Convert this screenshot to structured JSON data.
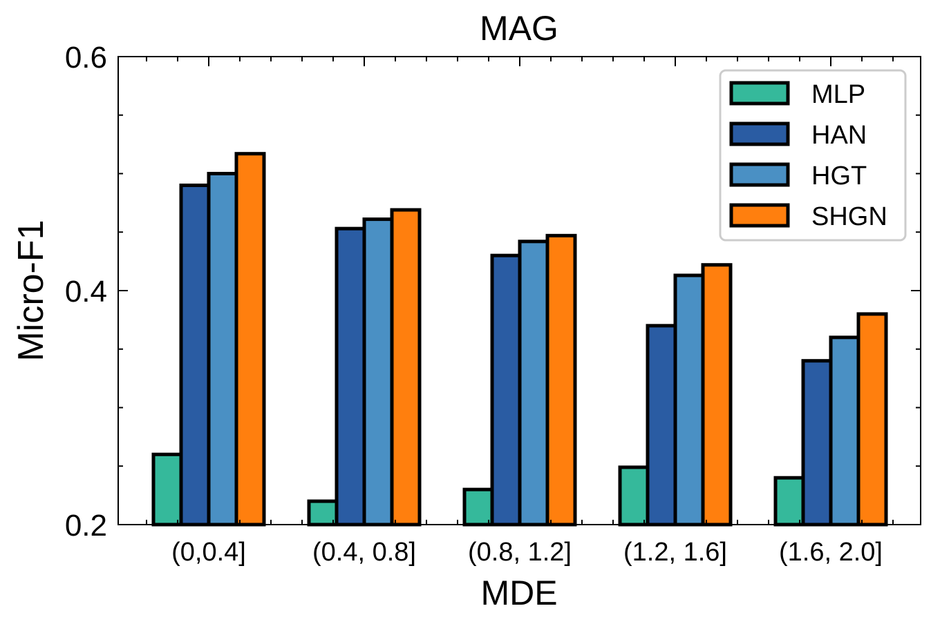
{
  "chart_data": {
    "type": "bar",
    "title": "MAG",
    "xlabel": "MDE",
    "ylabel": "Micro-F1",
    "categories": [
      "(0,0.4]",
      "(0.4, 0.8]",
      "(0.8, 1.2]",
      "(1.2, 1.6]",
      "(1.6, 2.0]"
    ],
    "ylim": [
      0.2,
      0.6
    ],
    "yticks": [
      0.2,
      0.4,
      0.6
    ],
    "ytick_labels": [
      "0.2",
      "0.4",
      "0.6"
    ],
    "legend_position": "top-right",
    "grid": false,
    "series": [
      {
        "name": "MLP",
        "color": "#35b99b",
        "values": [
          0.26,
          0.22,
          0.23,
          0.249,
          0.24
        ]
      },
      {
        "name": "HAN",
        "color": "#2a5ca3",
        "values": [
          0.49,
          0.453,
          0.43,
          0.37,
          0.34
        ]
      },
      {
        "name": "HGT",
        "color": "#4a90c4",
        "values": [
          0.5,
          0.461,
          0.442,
          0.413,
          0.36
        ]
      },
      {
        "name": "SHGN",
        "color": "#ff7f0e",
        "values": [
          0.517,
          0.469,
          0.447,
          0.422,
          0.38
        ]
      }
    ]
  }
}
